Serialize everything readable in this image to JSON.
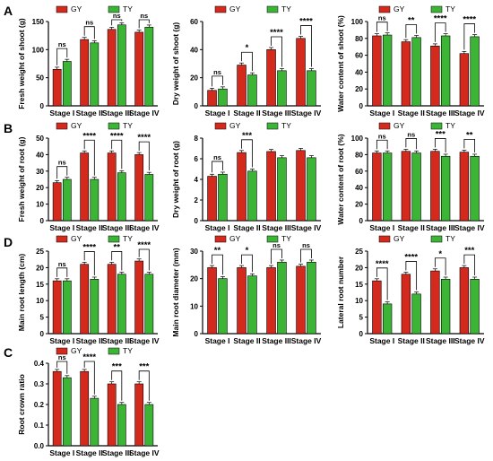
{
  "colors": {
    "GY": "#d42a1e",
    "TY": "#3cb435",
    "axis": "#000000"
  },
  "chart_data": [
    {
      "panel_letter": "A",
      "type": "bar",
      "categories": [
        "Stage I",
        "Stage II",
        "Stage III",
        "Stage IV"
      ],
      "legend": [
        "GY",
        "TY"
      ],
      "ylabel": "Fresh weight of shoot (g)",
      "ylim": [
        0,
        150
      ],
      "yticks": [
        "0",
        "50",
        "100",
        "150"
      ],
      "series": [
        {
          "name": "GY",
          "values": [
            65,
            118,
            136,
            131
          ]
        },
        {
          "name": "TY",
          "values": [
            79,
            112,
            144,
            140
          ]
        }
      ],
      "significance": [
        "ns",
        "ns",
        "ns",
        "ns"
      ]
    },
    {
      "type": "bar",
      "categories": [
        "Stage I",
        "Stage II",
        "Stage III",
        "Stage IV"
      ],
      "legend": [
        "GY",
        "TY"
      ],
      "ylabel": "Dry weight of shoot (g)",
      "ylim": [
        0,
        60
      ],
      "yticks": [
        "0",
        "20",
        "40",
        "60"
      ],
      "series": [
        {
          "name": "GY",
          "values": [
            11,
            29,
            40,
            48
          ]
        },
        {
          "name": "TY",
          "values": [
            12,
            22,
            25,
            25
          ]
        }
      ],
      "significance": [
        "ns",
        "*",
        "****",
        "****"
      ]
    },
    {
      "type": "bar",
      "categories": [
        "Stage I",
        "Stage II",
        "Stage III",
        "Stage IV"
      ],
      "legend": [
        "GY",
        "TY"
      ],
      "ylabel": "Water content of shoot (%)",
      "ylim": [
        0,
        100
      ],
      "yticks": [
        "0",
        "20",
        "40",
        "60",
        "80",
        "100"
      ],
      "series": [
        {
          "name": "GY",
          "values": [
            83,
            76,
            71,
            62
          ]
        },
        {
          "name": "TY",
          "values": [
            84,
            81,
            83,
            82
          ]
        }
      ],
      "significance": [
        "ns",
        "**",
        "****",
        "****"
      ]
    },
    {
      "panel_letter": "B",
      "type": "bar",
      "categories": [
        "Stage I",
        "Stage II",
        "Stage III",
        "Stage IV"
      ],
      "legend": [
        "GY",
        "TY"
      ],
      "ylabel": "Fresh weight of root (g)",
      "ylim": [
        0,
        50
      ],
      "yticks": [
        "0",
        "10",
        "20",
        "30",
        "40",
        "50"
      ],
      "series": [
        {
          "name": "GY",
          "values": [
            23,
            41,
            41,
            40
          ]
        },
        {
          "name": "TY",
          "values": [
            25,
            25,
            29,
            28
          ]
        }
      ],
      "significance": [
        "ns",
        "****",
        "****",
        "****"
      ]
    },
    {
      "type": "bar",
      "categories": [
        "Stage I",
        "Stage II",
        "Stage III",
        "Stage IV"
      ],
      "legend": [
        "GY",
        "TY"
      ],
      "ylabel": "Dry weight of root (g)",
      "ylim": [
        0,
        8
      ],
      "yticks": [
        "0",
        "2",
        "4",
        "6",
        "8"
      ],
      "series": [
        {
          "name": "GY",
          "values": [
            4.3,
            6.6,
            6.7,
            6.8
          ]
        },
        {
          "name": "TY",
          "values": [
            4.5,
            4.8,
            6.1,
            6.1
          ]
        }
      ],
      "significance": [
        "ns",
        "***",
        "",
        ""
      ]
    },
    {
      "type": "bar",
      "categories": [
        "Stage I",
        "Stage II",
        "Stage III",
        "Stage IV"
      ],
      "legend": [
        "GY",
        "TY"
      ],
      "ylabel": "Water content of root (%)",
      "ylim": [
        0,
        100
      ],
      "yticks": [
        "0",
        "20",
        "40",
        "60",
        "80",
        "100"
      ],
      "series": [
        {
          "name": "GY",
          "values": [
            82,
            84,
            84,
            83
          ]
        },
        {
          "name": "TY",
          "values": [
            82,
            82,
            78,
            78
          ]
        }
      ],
      "significance": [
        "ns",
        "ns",
        "***",
        "**"
      ]
    },
    {
      "panel_letter": "D",
      "type": "bar",
      "categories": [
        "Stage I",
        "Stage II",
        "Stage III",
        "Stage IV"
      ],
      "legend": [
        "GY",
        "TY"
      ],
      "ylabel": "Main root length (cm)",
      "ylim": [
        0,
        25
      ],
      "yticks": [
        "0",
        "5",
        "10",
        "15",
        "20",
        "25"
      ],
      "series": [
        {
          "name": "GY",
          "values": [
            16,
            21,
            21,
            22
          ]
        },
        {
          "name": "TY",
          "values": [
            16,
            16.5,
            18,
            18
          ]
        }
      ],
      "significance": [
        "ns",
        "****",
        "**",
        "****"
      ]
    },
    {
      "type": "bar",
      "categories": [
        "Stage I",
        "Stage II",
        "Stage III",
        "Stage IV"
      ],
      "legend": [
        "GY",
        "TY"
      ],
      "ylabel": "Main root diameter (mm)",
      "ylim": [
        0,
        30
      ],
      "yticks": [
        "0",
        "10",
        "20",
        "30"
      ],
      "series": [
        {
          "name": "GY",
          "values": [
            24,
            24,
            24,
            24.5
          ]
        },
        {
          "name": "TY",
          "values": [
            20,
            21,
            26,
            26
          ]
        }
      ],
      "significance": [
        "**",
        "*",
        "ns",
        "ns"
      ]
    },
    {
      "type": "bar",
      "categories": [
        "Stage I",
        "Stage II",
        "Stage III",
        "Stage IV"
      ],
      "legend": [
        "GY",
        "TY"
      ],
      "ylabel": "Lateral root number",
      "ylim": [
        0,
        25
      ],
      "yticks": [
        "0",
        "5",
        "10",
        "15",
        "20",
        "25"
      ],
      "series": [
        {
          "name": "GY",
          "values": [
            16,
            18,
            19,
            20
          ]
        },
        {
          "name": "TY",
          "values": [
            9,
            12,
            16.5,
            16.5
          ]
        }
      ],
      "significance": [
        "****",
        "****",
        "*",
        "***"
      ]
    },
    {
      "panel_letter": "C",
      "type": "bar",
      "categories": [
        "Stage I",
        "Stage II",
        "Stage III",
        "Stage IV"
      ],
      "legend": [
        "GY",
        "TY"
      ],
      "ylabel": "Root crown ratio",
      "ylim": [
        0,
        0.4
      ],
      "yticks": [
        "0.0",
        "0.1",
        "0.2",
        "0.3",
        "0.4"
      ],
      "series": [
        {
          "name": "GY",
          "values": [
            0.36,
            0.36,
            0.3,
            0.3
          ]
        },
        {
          "name": "TY",
          "values": [
            0.33,
            0.23,
            0.2,
            0.2
          ]
        }
      ],
      "significance": [
        "ns",
        "****",
        "***",
        "***"
      ]
    }
  ]
}
